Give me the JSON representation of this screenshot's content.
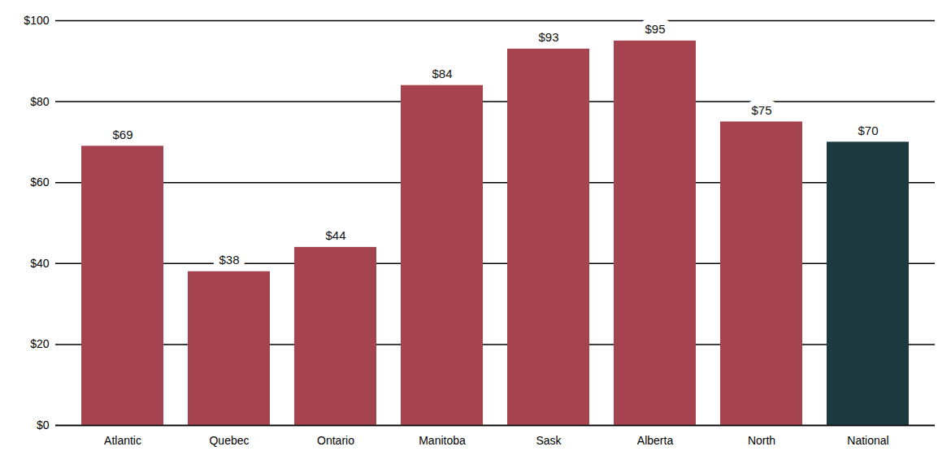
{
  "chart_data": {
    "type": "bar",
    "categories": [
      "Atlantic",
      "Quebec",
      "Ontario",
      "Manitoba",
      "Sask",
      "Alberta",
      "North",
      "National"
    ],
    "values": [
      69,
      38,
      44,
      84,
      93,
      95,
      75,
      70
    ],
    "value_labels": [
      "$69",
      "$38",
      "$44",
      "$84",
      "$93",
      "$95",
      "$75",
      "$70"
    ],
    "colors": [
      "#a5444f",
      "#a5444f",
      "#a5444f",
      "#a5444f",
      "#a5444f",
      "#a5444f",
      "#a5444f",
      "#1d3a40"
    ],
    "ylim": [
      0,
      100
    ],
    "yticks": [
      {
        "value": 0,
        "label": "$0"
      },
      {
        "value": 20,
        "label": "$20"
      },
      {
        "value": 40,
        "label": "$40"
      },
      {
        "value": 60,
        "label": "$60"
      },
      {
        "value": 80,
        "label": "$80"
      },
      {
        "value": 100,
        "label": "$100"
      }
    ],
    "grid": true,
    "data_labels": true
  }
}
